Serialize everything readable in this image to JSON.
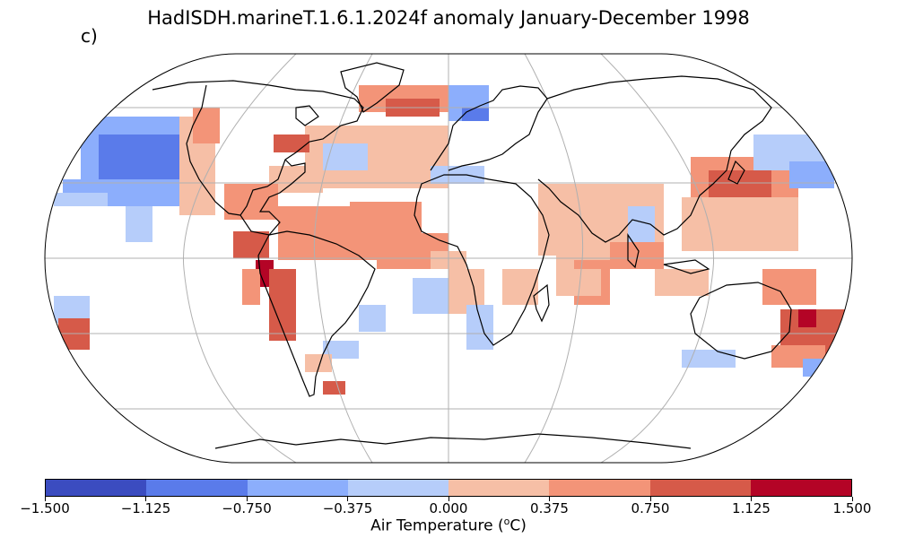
{
  "title": "HadISDH.marineT.1.6.1.2024f anomaly January-December 1998",
  "panel_label": "c)",
  "colorbar": {
    "label_prefix": "Air Temperature (",
    "label_sup": "o",
    "label_suffix": "C)",
    "ticks": [
      "−1.500",
      "−1.125",
      "−0.750",
      "−0.375",
      "0.000",
      "0.375",
      "0.750",
      "1.125",
      "1.500"
    ],
    "colors": [
      "#3b4cc0",
      "#5a7bea",
      "#8caefc",
      "#b6cdfa",
      "#f6bfa6",
      "#f39478",
      "#d65a49",
      "#b40426"
    ]
  },
  "map": {
    "projection": "Robinson",
    "grid": true,
    "colors": {
      "ocean_outline": "#000000",
      "gridline": "#b0b0b0",
      "coastline": "#000000"
    }
  }
}
